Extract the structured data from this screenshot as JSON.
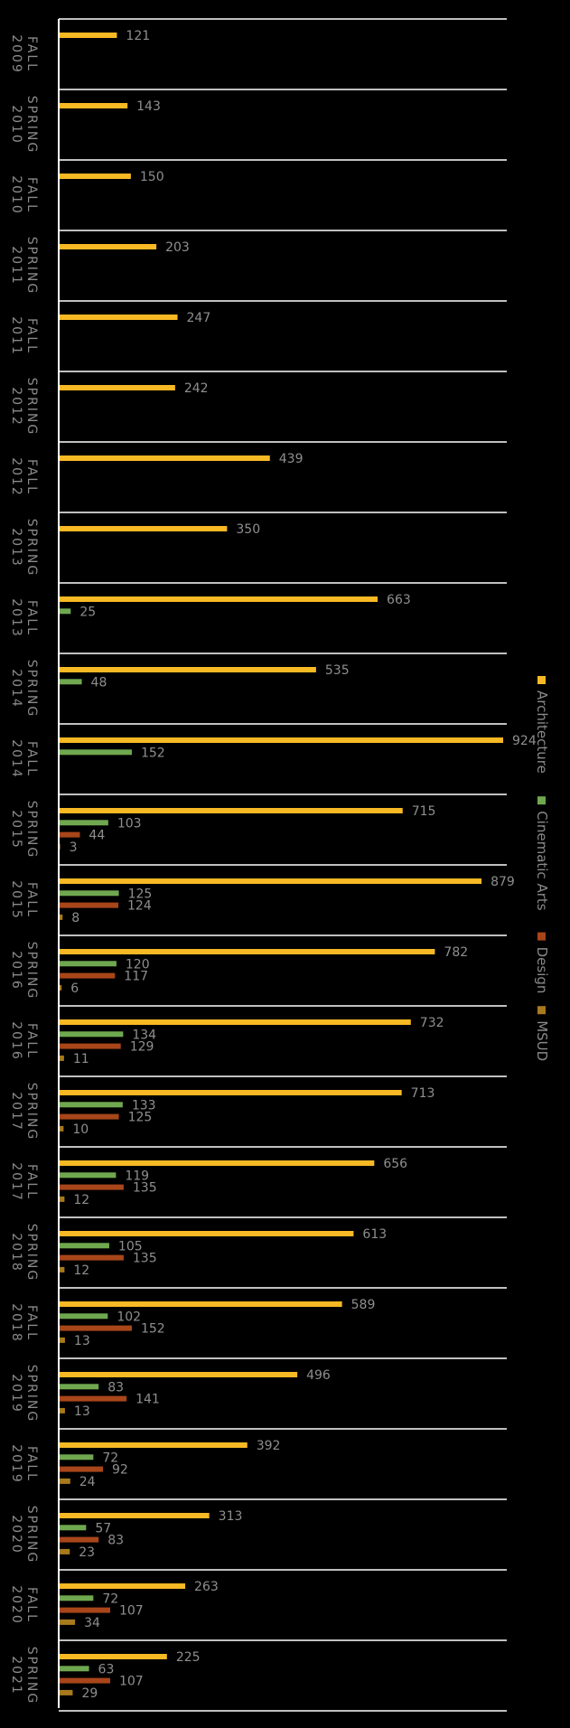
{
  "chart_data": {
    "type": "bar",
    "orientation": "horizontal",
    "categories": [
      "FALL 2009",
      "SPRING 2010",
      "FALL 2010",
      "SPRING 2011",
      "FALL 2011",
      "SPRING 2012",
      "FALL 2012",
      "SPRING 2013",
      "FALL 2013",
      "SPRING 2014",
      "FALL 2014",
      "SPRING 2015",
      "FALL 2015",
      "SPRING 2016",
      "FALL 2016",
      "SPRING 2017",
      "FALL 2017",
      "SPRING 2018",
      "FALL 2018",
      "SPRING 2019",
      "FALL 2019",
      "SPRING 2020",
      "FALL 2020",
      "SPRING 2021"
    ],
    "series": [
      {
        "name": "Architecture",
        "color": "#f7b924",
        "values": [
          121,
          143,
          150,
          203,
          247,
          242,
          439,
          350,
          663,
          535,
          924,
          715,
          879,
          782,
          732,
          713,
          656,
          613,
          589,
          496,
          392,
          313,
          263,
          225
        ]
      },
      {
        "name": "Cinematic Arts",
        "color": "#70a850",
        "values": [
          null,
          null,
          null,
          null,
          null,
          null,
          null,
          null,
          25,
          48,
          152,
          103,
          125,
          120,
          134,
          133,
          119,
          105,
          102,
          83,
          72,
          57,
          72,
          63
        ]
      },
      {
        "name": "Design",
        "color": "#a8461a",
        "values": [
          null,
          null,
          null,
          null,
          null,
          null,
          null,
          null,
          null,
          null,
          null,
          44,
          124,
          117,
          129,
          125,
          135,
          135,
          152,
          141,
          92,
          83,
          107,
          107
        ]
      },
      {
        "name": "MSUD",
        "color": "#a87a1e",
        "values": [
          null,
          null,
          null,
          null,
          null,
          null,
          null,
          null,
          null,
          null,
          null,
          3,
          8,
          6,
          11,
          10,
          12,
          12,
          13,
          13,
          24,
          23,
          34,
          29
        ]
      }
    ],
    "xlim": [
      0,
      1000
    ],
    "grid": false,
    "legend_position": "right"
  }
}
